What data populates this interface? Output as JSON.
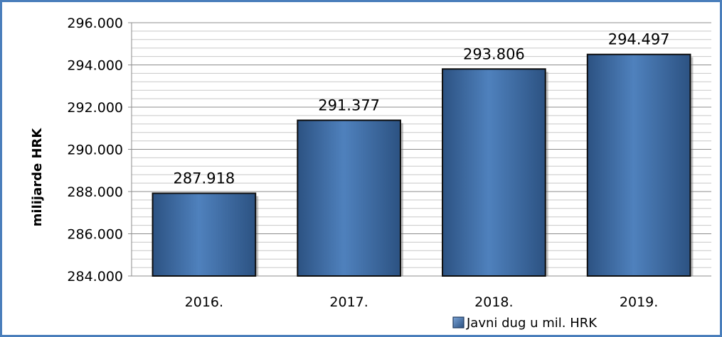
{
  "chart_data": {
    "type": "bar",
    "title": "",
    "xlabel": "",
    "ylabel": "milijarde HRK",
    "categories": [
      "2016.",
      "2017.",
      "2018.",
      "2019."
    ],
    "series": [
      {
        "name": "Javni dug u mil. HRK",
        "values": [
          287.918,
          291.377,
          293.806,
          294.497
        ],
        "labels": [
          "287.918",
          "291.377",
          "293.806",
          "294.497"
        ],
        "color": "#4f81bd"
      }
    ],
    "ylim": [
      284,
      296
    ],
    "yticks": [
      284,
      286,
      288,
      290,
      292,
      294,
      296
    ],
    "ytick_labels": [
      "284.000",
      "286.000",
      "288.000",
      "290.000",
      "292.000",
      "294.000",
      "296.000"
    ],
    "minor_grid_step": 0.4,
    "grid": true,
    "legend_position": "bottom-right"
  }
}
